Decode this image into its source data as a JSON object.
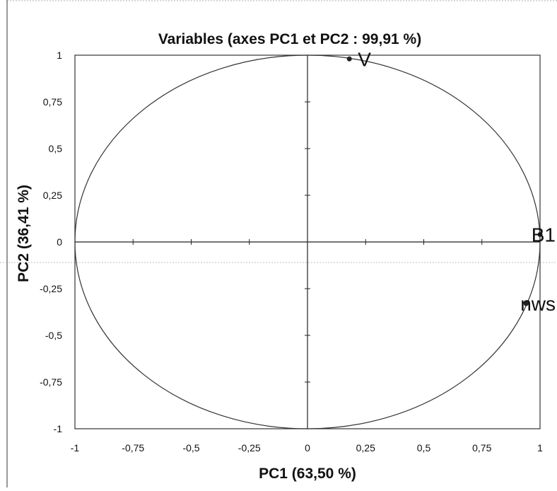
{
  "chart_data": {
    "type": "scatter",
    "title": "Variables (axes PC1 et PC2 : 99,91 %)",
    "xlabel": "PC1 (63,50 %)",
    "ylabel": "PC2 (36,41 %)",
    "xlim": [
      -1,
      1
    ],
    "ylim": [
      -1,
      1
    ],
    "xticks": [
      "-1",
      "-0,75",
      "-0,5",
      "-0,25",
      "0",
      "0,25",
      "0,5",
      "0,75",
      "1"
    ],
    "yticks": [
      "1",
      "0,75",
      "0,5",
      "0,25",
      "0",
      "-0,25",
      "-0,5",
      "-0,75",
      "-1"
    ],
    "xtick_values": [
      -1,
      -0.75,
      -0.5,
      -0.25,
      0,
      0.25,
      0.5,
      0.75,
      1
    ],
    "ytick_values": [
      1,
      0.75,
      0.5,
      0.25,
      0,
      -0.25,
      -0.5,
      -0.75,
      -1
    ],
    "correlation_circle": true,
    "grid": false,
    "points": [
      {
        "label": "V",
        "x": 0.18,
        "y": 0.98
      },
      {
        "label": "B1",
        "x": 1.0,
        "y": 0.04
      },
      {
        "label": "nws",
        "x": 0.94,
        "y": -0.33
      }
    ]
  }
}
